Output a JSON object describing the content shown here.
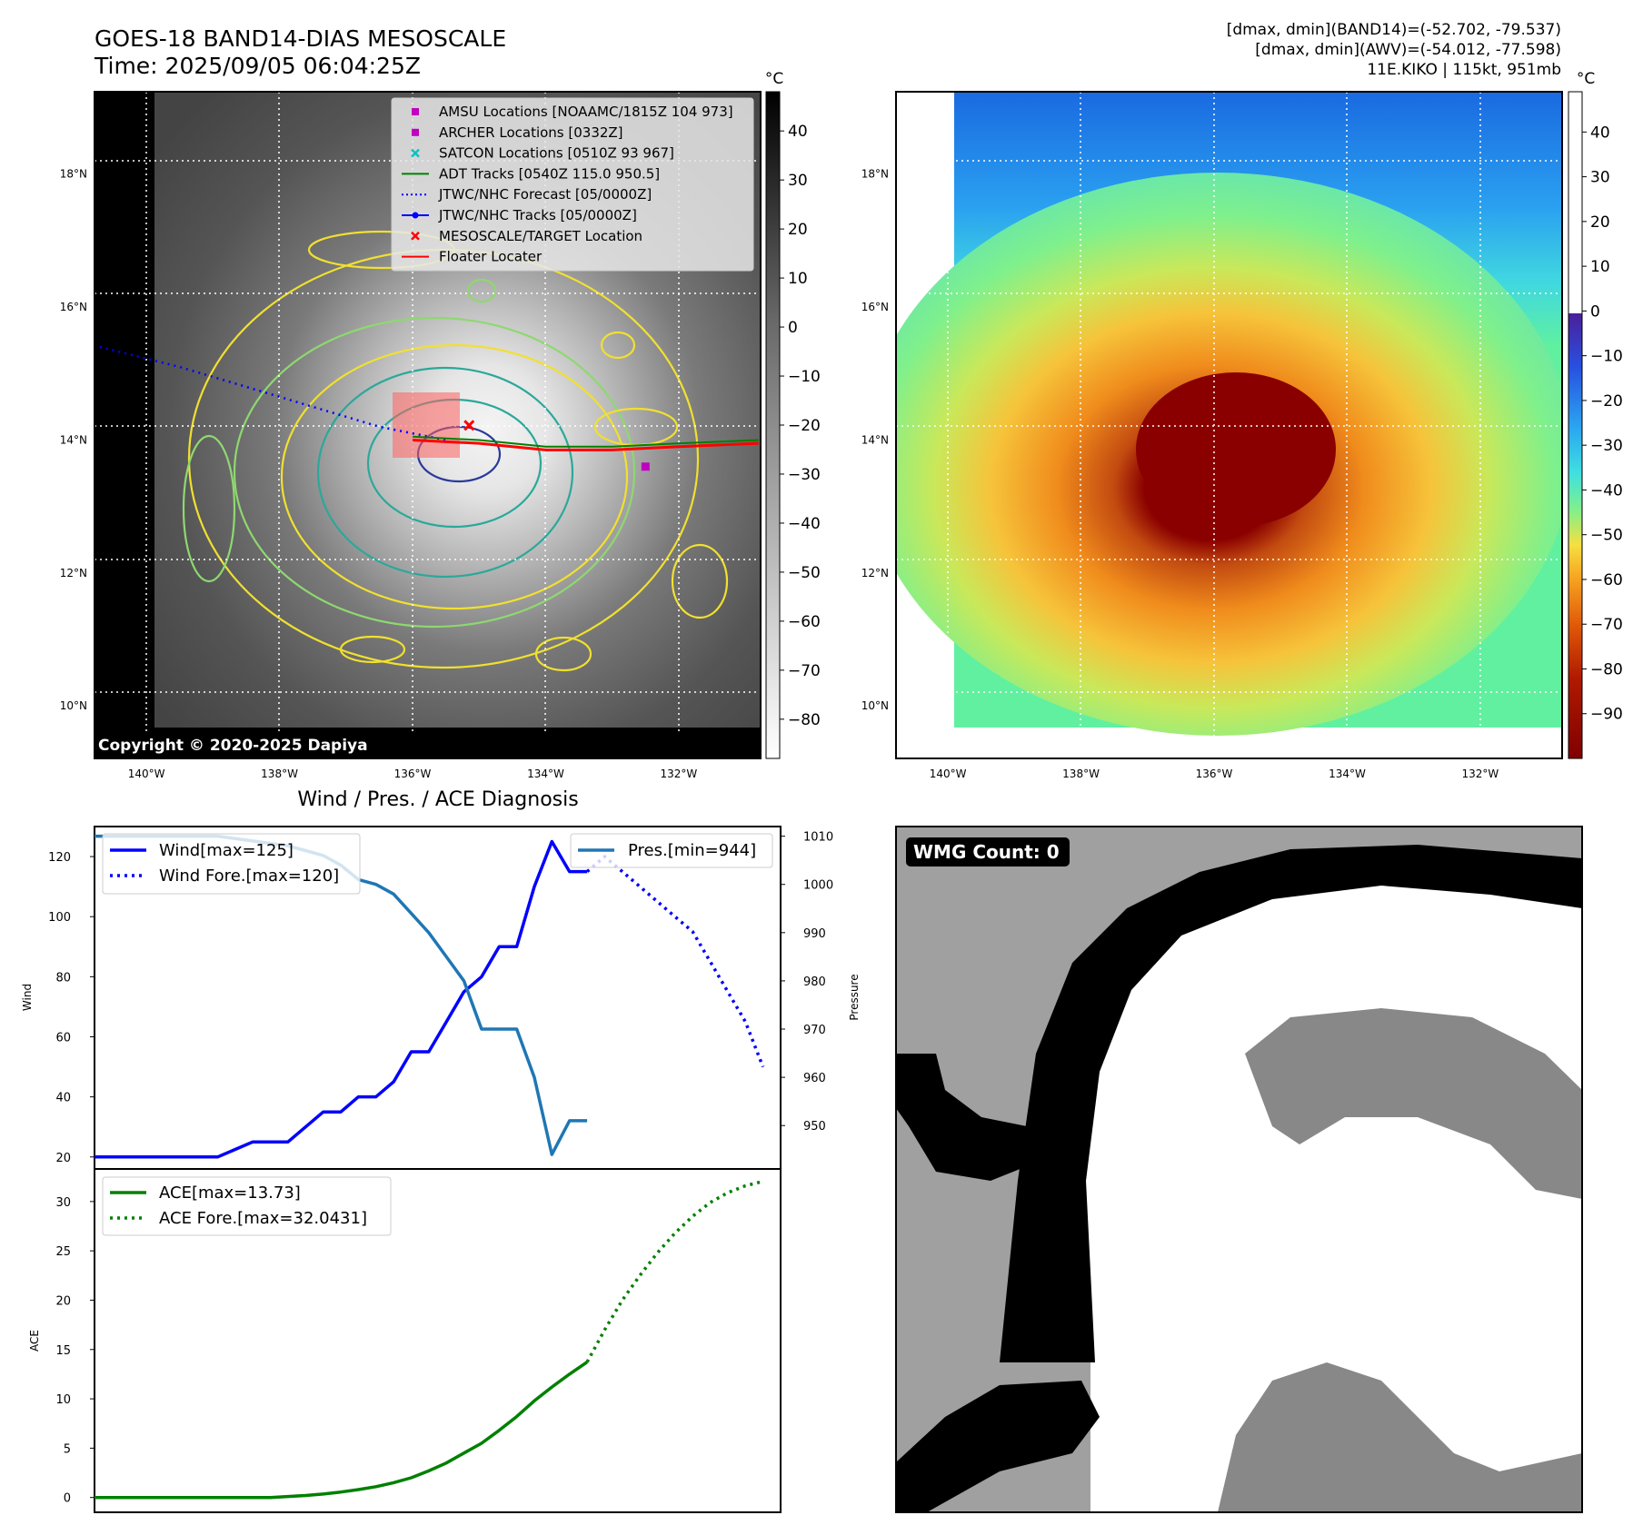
{
  "header": {
    "title_line1": "GOES-18 BAND14-DIAS MESOSCALE",
    "title_line2": "Time: 2025/09/05 06:04:25Z",
    "info_line1": "[dmax, dmin](BAND14)=(-52.702, -79.537)",
    "info_line2": "[dmax, dmin](AWV)=(-54.012, -77.598)",
    "info_line3": "11E.KIKO | 115kt, 951mb"
  },
  "map_ir": {
    "copyright": "Copyright © 2020-2025 Dapiya",
    "colorbar_unit": "°C",
    "colorbar_ticks": [
      40,
      30,
      20,
      10,
      0,
      -10,
      -20,
      -30,
      -40,
      -50,
      -60,
      -70,
      -80
    ],
    "colorbar_tick_labels": [
      "40",
      "30",
      "20",
      "10",
      "0",
      "−10",
      "−20",
      "−30",
      "−40",
      "−50",
      "−60",
      "−70",
      "−80"
    ],
    "colorbar_range": [
      -88,
      48
    ],
    "lat_labels": [
      "18°N",
      "16°N",
      "14°N",
      "12°N",
      "10°N"
    ],
    "lon_labels": [
      "140°W",
      "138°W",
      "136°W",
      "134°W",
      "132°W"
    ],
    "lat_values": [
      18,
      16,
      14,
      12,
      10
    ],
    "lon_values": [
      -140,
      -138,
      -136,
      -134,
      -132
    ],
    "legend": [
      {
        "label": "AMSU Locations [NOAAMC/1815Z 104 973]",
        "color": "#c000c0",
        "marker": "square"
      },
      {
        "label": "ARCHER Locations [0332Z]",
        "color": "#c000c0",
        "marker": "square"
      },
      {
        "label": "SATCON Locations [0510Z 93 967]",
        "color": "#10c0c0",
        "marker": "x"
      },
      {
        "label": "ADT Tracks [0540Z 115.0 950.5]",
        "color": "#008000",
        "marker": "line"
      },
      {
        "label": "JTWC/NHC Forecast [05/0000Z]",
        "color": "#0000ff",
        "marker": "dotted"
      },
      {
        "label": "JTWC/NHC Tracks [05/0000Z]",
        "color": "#0000ff",
        "marker": "line-dot"
      },
      {
        "label": "MESOSCALE/TARGET Location",
        "color": "#ff0000",
        "marker": "x"
      },
      {
        "label": "Floater Locater",
        "color": "#ff0000",
        "marker": "line"
      }
    ],
    "forecast_track": [
      [
        -140.7,
        15.4
      ],
      [
        -139.5,
        15.1
      ],
      [
        -138.5,
        14.8
      ],
      [
        -137.5,
        14.5
      ],
      [
        -136.5,
        14.2
      ],
      [
        -135.5,
        14.0
      ]
    ],
    "observed_track": [
      [
        -136.0,
        14.0
      ],
      [
        -135.0,
        13.95
      ],
      [
        -134.0,
        13.85
      ],
      [
        -133.0,
        13.85
      ],
      [
        -132.0,
        13.9
      ],
      [
        -130.8,
        13.95
      ]
    ],
    "target": [
      -135.15,
      14.22
    ],
    "amsu": [
      -132.5,
      13.6
    ]
  },
  "map_awv": {
    "colorbar_unit": "°C",
    "colorbar_ticks": [
      40,
      30,
      20,
      10,
      0,
      -10,
      -20,
      -30,
      -40,
      -50,
      -60,
      -70,
      -80,
      -90
    ],
    "colorbar_tick_labels": [
      "40",
      "30",
      "20",
      "10",
      "0",
      "−10",
      "−20",
      "−30",
      "−40",
      "−50",
      "−60",
      "−70",
      "−80",
      "−90"
    ],
    "colorbar_range": [
      -100,
      49
    ],
    "lat_labels": [
      "18°N",
      "16°N",
      "14°N",
      "12°N",
      "10°N"
    ],
    "lon_labels": [
      "140°W",
      "138°W",
      "136°W",
      "134°W",
      "132°W"
    ]
  },
  "wmg": {
    "label": "WMG Count: 0"
  },
  "chart_data": [
    {
      "type": "line",
      "title": "Wind / Pres. / ACE Diagnosis",
      "ylabel": "Wind",
      "y2label": "Pressure",
      "ylim": [
        16,
        130
      ],
      "y2lim": [
        941,
        1012
      ],
      "xlim": [
        0,
        39
      ],
      "yticks": [
        20,
        40,
        60,
        80,
        100,
        120
      ],
      "y2ticks": [
        950,
        960,
        970,
        980,
        990,
        1000,
        1010
      ],
      "series": [
        {
          "name": "Wind[max=125]",
          "style": "solid",
          "color": "#0000ff",
          "x": [
            0,
            7,
            9,
            11,
            12,
            13,
            14,
            15,
            16,
            17,
            18,
            19,
            20,
            21,
            22,
            23,
            24,
            25,
            26,
            27,
            28
          ],
          "values": [
            20,
            20,
            25,
            25,
            30,
            35,
            35,
            40,
            40,
            45,
            55,
            55,
            65,
            75,
            80,
            90,
            90,
            110,
            125,
            115,
            115
          ]
        },
        {
          "name": "Wind Fore.[max=120]",
          "style": "dotted",
          "color": "#0000ff",
          "x": [
            28,
            29,
            30,
            31,
            32,
            33,
            34,
            35,
            36,
            37,
            38
          ],
          "values": [
            115,
            120,
            115,
            110,
            105,
            100,
            95,
            85,
            75,
            65,
            50
          ]
        },
        {
          "name": "Pres.[min=944]",
          "style": "solid",
          "color": "#1f77b4",
          "axis": "right",
          "x": [
            0,
            7,
            9,
            11,
            12,
            13,
            14,
            15,
            16,
            17,
            18,
            19,
            20,
            21,
            22,
            23,
            24,
            25,
            26,
            27,
            28
          ],
          "values": [
            1010,
            1010,
            1009,
            1008,
            1007,
            1006,
            1004,
            1001,
            1000,
            998,
            994,
            990,
            985,
            980,
            970,
            970,
            970,
            960,
            944,
            951,
            951
          ]
        }
      ]
    },
    {
      "type": "line",
      "ylabel": "ACE",
      "ylim": [
        -1.5,
        33.3
      ],
      "xlim": [
        0,
        39
      ],
      "yticks": [
        0,
        5,
        10,
        15,
        20,
        25,
        30
      ],
      "series": [
        {
          "name": "ACE[max=13.73]",
          "style": "solid",
          "color": "#008000",
          "x": [
            0,
            10,
            11,
            12,
            13,
            14,
            15,
            16,
            17,
            18,
            19,
            20,
            21,
            22,
            23,
            24,
            25,
            26,
            27,
            28
          ],
          "values": [
            0,
            0,
            0.1,
            0.2,
            0.35,
            0.55,
            0.8,
            1.1,
            1.5,
            2.0,
            2.7,
            3.5,
            4.5,
            5.5,
            6.8,
            8.2,
            9.8,
            11.2,
            12.5,
            13.73
          ]
        },
        {
          "name": "ACE Fore.[max=32.0431]",
          "style": "dotted",
          "color": "#008000",
          "x": [
            28,
            29,
            30,
            31,
            32,
            33,
            34,
            35,
            36,
            37,
            38
          ],
          "values": [
            13.73,
            17.0,
            20.0,
            22.5,
            24.8,
            26.8,
            28.5,
            29.9,
            30.9,
            31.6,
            32.04
          ]
        }
      ]
    }
  ]
}
